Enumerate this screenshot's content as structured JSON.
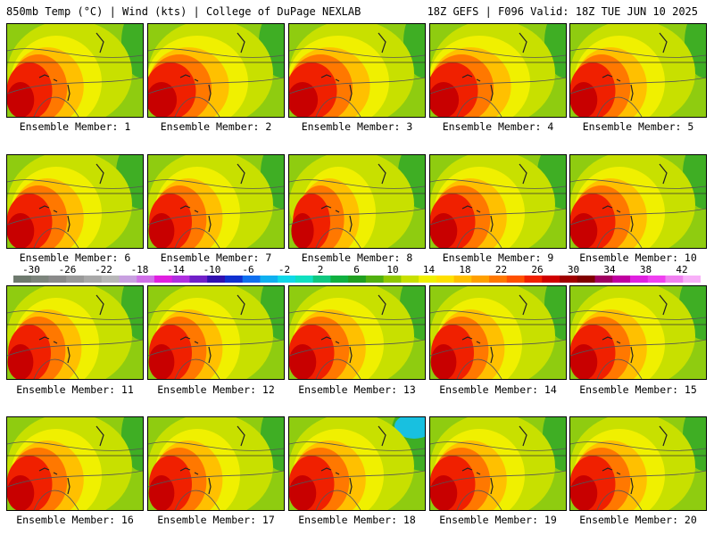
{
  "header": {
    "left": "850mb Temp (°C) | Wind (kts) | College of DuPage NEXLAB",
    "right": "18Z GEFS | F096 Valid: 18Z TUE JUN 10 2025"
  },
  "colorbar": {
    "labels": [
      "-30",
      "-26",
      "-22",
      "-18",
      "-14",
      "-10",
      "-6",
      "-2",
      "2",
      "6",
      "10",
      "14",
      "18",
      "22",
      "26",
      "30",
      "34",
      "38",
      "42"
    ],
    "colors": [
      "#6e7a6e",
      "#7d857d",
      "#8a8a8a",
      "#999999",
      "#a8a8a8",
      "#b8b8b8",
      "#c8a0e0",
      "#d070e8",
      "#e020e0",
      "#b030e0",
      "#7020c8",
      "#3010b0",
      "#1030d0",
      "#1070f0",
      "#10b0f0",
      "#10d8e8",
      "#10e0c0",
      "#10c880",
      "#10b040",
      "#20a020",
      "#50b010",
      "#90c800",
      "#c8e000",
      "#f0f000",
      "#ffe000",
      "#ffc000",
      "#ffa000",
      "#ff7800",
      "#ff5000",
      "#f02000",
      "#d00000",
      "#a00000",
      "#800000",
      "#a00060",
      "#c000a0",
      "#e020e0",
      "#f040f0",
      "#f080f0",
      "#f8b0f8"
    ]
  },
  "members": [
    {
      "label": "Ensemble Member: 1",
      "warm": 0.85,
      "cool": 0.05
    },
    {
      "label": "Ensemble Member: 2",
      "warm": 0.95,
      "cool": 0.15
    },
    {
      "label": "Ensemble Member: 3",
      "warm": 0.95,
      "cool": 0.05
    },
    {
      "label": "Ensemble Member: 4",
      "warm": 0.95,
      "cool": 0.05
    },
    {
      "label": "Ensemble Member: 5",
      "warm": 0.85,
      "cool": 0.05
    },
    {
      "label": "Ensemble Member: 6",
      "warm": 0.85,
      "cool": 0.2
    },
    {
      "label": "Ensemble Member: 7",
      "warm": 0.8,
      "cool": 0.1
    },
    {
      "label": "Ensemble Member: 8",
      "warm": 0.7,
      "cool": 0.2
    },
    {
      "label": "Ensemble Member: 9",
      "warm": 0.85,
      "cool": 0.25
    },
    {
      "label": "Ensemble Member: 10",
      "warm": 0.85,
      "cool": 0.1
    },
    {
      "label": "Ensemble Member: 11",
      "warm": 0.8,
      "cool": 0.05
    },
    {
      "label": "Ensemble Member: 12",
      "warm": 0.8,
      "cool": 0.1
    },
    {
      "label": "Ensemble Member: 13",
      "warm": 0.85,
      "cool": 0.15
    },
    {
      "label": "Ensemble Member: 14",
      "warm": 0.8,
      "cool": 0.05
    },
    {
      "label": "Ensemble Member: 15",
      "warm": 0.85,
      "cool": 0.2
    },
    {
      "label": "Ensemble Member: 16",
      "warm": 0.85,
      "cool": 0.05
    },
    {
      "label": "Ensemble Member: 17",
      "warm": 0.8,
      "cool": 0.1
    },
    {
      "label": "Ensemble Member: 18",
      "warm": 0.85,
      "cool": 0.4
    },
    {
      "label": "Ensemble Member: 19",
      "warm": 0.85,
      "cool": 0.1
    },
    {
      "label": "Ensemble Member: 20",
      "warm": 0.85,
      "cool": 0.1
    }
  ]
}
